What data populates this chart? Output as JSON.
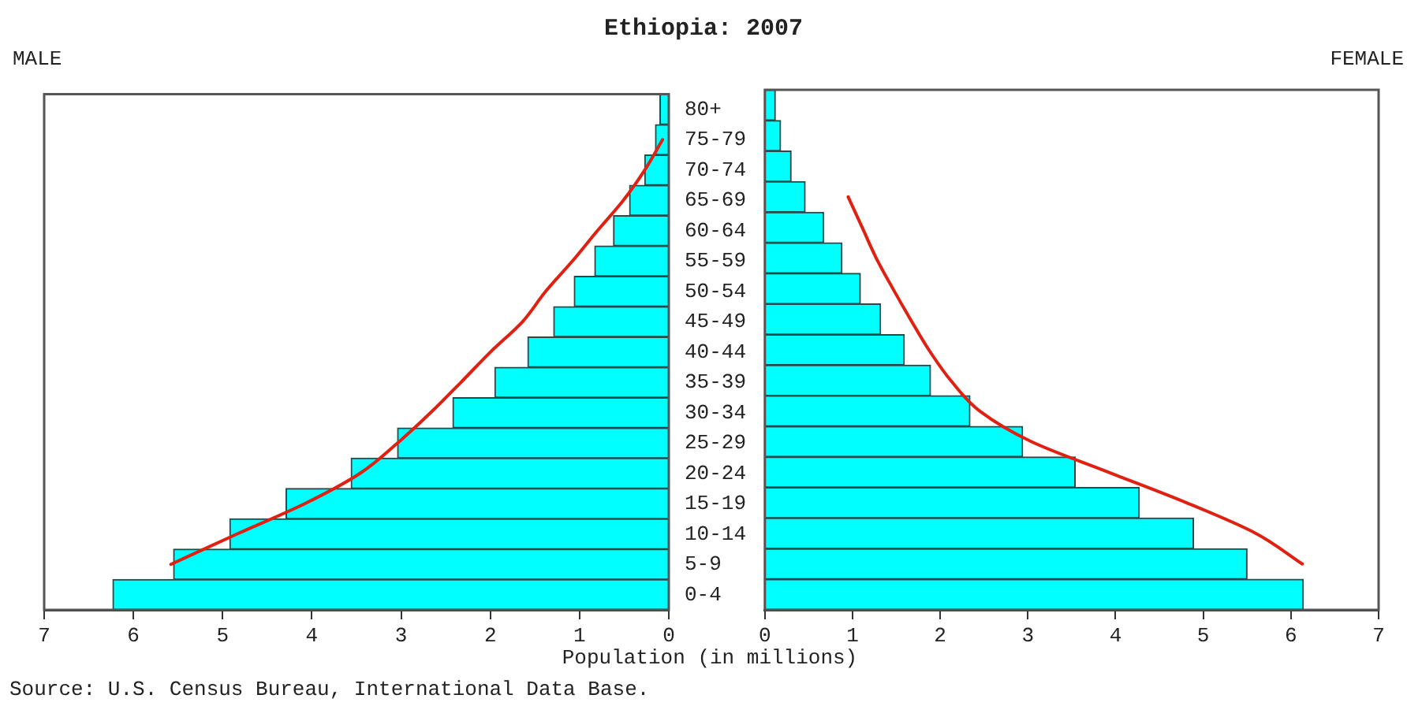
{
  "chart_data": [
    {
      "type": "bar",
      "orientation": "horizontal",
      "title": "Ethiopia: 2007",
      "subtitle": "MALE",
      "xlabel": "Population (in millions)",
      "annotations": [
        "Source: U.S. Census Bureau, International Data Base."
      ],
      "categories": [
        "80+",
        "75-79",
        "70-74",
        "65-69",
        "60-64",
        "55-59",
        "50-54",
        "45-49",
        "40-44",
        "35-39",
        "30-34",
        "25-29",
        "20-24",
        "15-19",
        "10-14",
        "5-9",
        "0-4"
      ],
      "series": [
        {
          "color": "#00ffff",
          "values": [
            0.1,
            0.15,
            0.27,
            0.44,
            0.62,
            0.83,
            1.06,
            1.29,
            1.58,
            1.95,
            2.42,
            3.04,
            3.56,
            4.29,
            4.92,
            5.55,
            6.23
          ]
        },
        {
          "type": "line",
          "color": "#e02010",
          "values": [
            null,
            0.07,
            0.27,
            0.51,
            0.8,
            1.08,
            1.38,
            1.64,
            2.0,
            2.33,
            2.67,
            3.04,
            3.46,
            4.08,
            4.84,
            5.58,
            null
          ]
        }
      ],
      "xlim": [
        7,
        0
      ],
      "xticks": [
        7,
        6,
        5,
        4,
        3,
        2,
        1,
        0
      ]
    },
    {
      "type": "bar",
      "orientation": "horizontal",
      "subtitle": "FEMALE",
      "tick_labels": "x",
      "categories": [
        null,
        null,
        null,
        null,
        null,
        null,
        null,
        null,
        null,
        null,
        null,
        null,
        null,
        null,
        null,
        null,
        null
      ],
      "series": [
        {
          "color": "#00ffff",
          "values": [
            0.12,
            0.18,
            0.3,
            0.46,
            0.67,
            0.88,
            1.09,
            1.32,
            1.59,
            1.89,
            2.34,
            2.94,
            3.54,
            4.27,
            4.89,
            5.5,
            6.14
          ]
        },
        {
          "type": "line",
          "color": "#e02010",
          "values": [
            null,
            null,
            null,
            0.95,
            1.11,
            1.27,
            1.46,
            1.66,
            1.87,
            2.12,
            2.45,
            3.04,
            3.92,
            4.81,
            5.6,
            6.13,
            null
          ]
        }
      ],
      "xlim": [
        0,
        7
      ],
      "xticks": [
        0,
        1,
        2,
        3,
        4,
        5,
        6,
        7
      ]
    }
  ]
}
